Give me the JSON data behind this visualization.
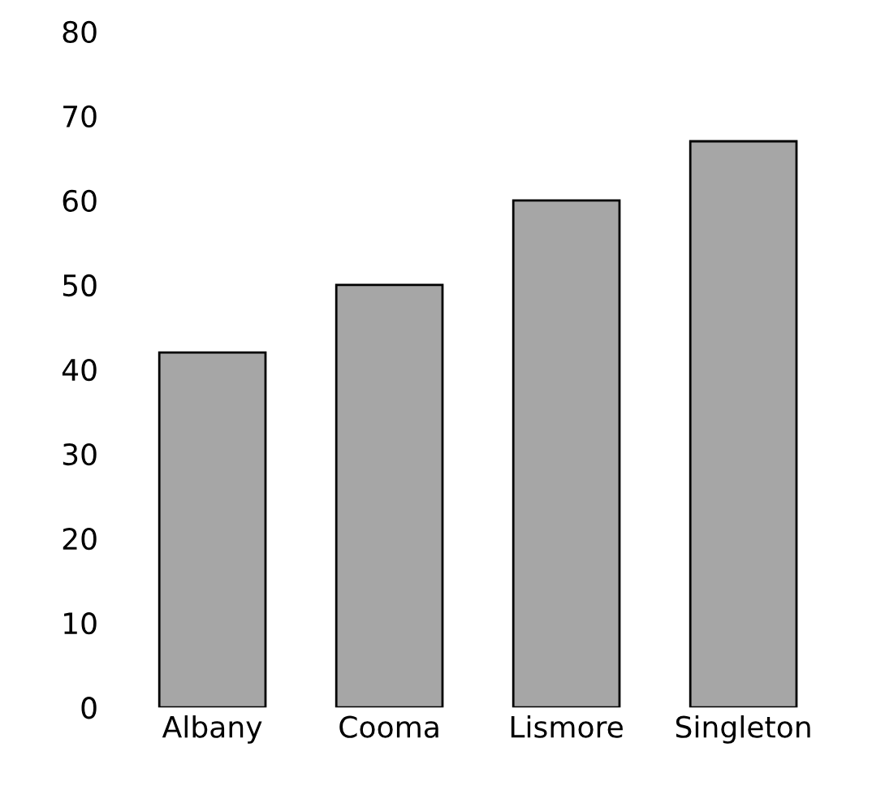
{
  "chart_data": {
    "type": "bar",
    "categories": [
      "Albany",
      "Cooma",
      "Lismore",
      "Singleton"
    ],
    "values": [
      42,
      50,
      60,
      67
    ],
    "color": "#a6a6a6",
    "ylim": [
      0,
      80
    ],
    "yticks": [
      0,
      10,
      20,
      30,
      40,
      50,
      60,
      70,
      80
    ],
    "grid": false
  }
}
